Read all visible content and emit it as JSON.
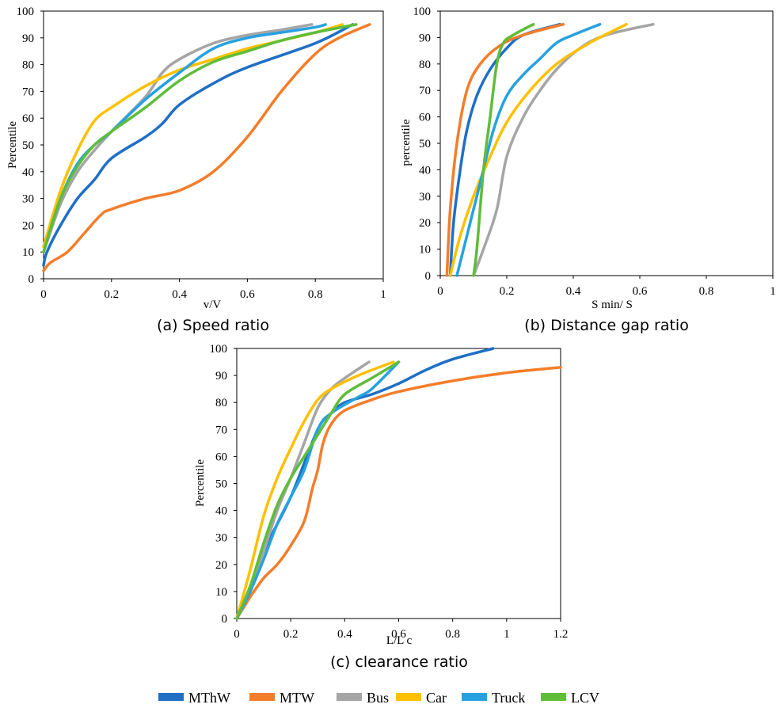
{
  "colors": {
    "MThW": "#1f6fc5",
    "MTW": "#f47d2a",
    "Bus": "#a5a5a5",
    "Car": "#ffc000",
    "Truck": "#27a1e0",
    "LCV": "#5fbd3a"
  },
  "legend": {
    "placement": "bottom",
    "items": [
      "MThW",
      "MTW",
      "Bus",
      "Car",
      "Truck",
      "LCV"
    ]
  },
  "chart_data": [
    {
      "type": "line",
      "caption": "(a) Speed ratio",
      "xlabel": "v/V",
      "ylabel": "Percentile",
      "xlim": [
        0,
        1
      ],
      "ylim": [
        0,
        100
      ],
      "xticks": [
        "0",
        "0.2",
        "0.4",
        "0.6",
        "0.8",
        "1"
      ],
      "yticks": [
        "0",
        "10",
        "20",
        "30",
        "40",
        "50",
        "60",
        "70",
        "80",
        "90",
        "100"
      ],
      "grid": false,
      "series": [
        {
          "name": "MThW",
          "points": [
            [
              0,
              5
            ],
            [
              0.01,
              10
            ],
            [
              0.05,
              20
            ],
            [
              0.1,
              30
            ],
            [
              0.15,
              37
            ],
            [
              0.2,
              45
            ],
            [
              0.3,
              53
            ],
            [
              0.35,
              58
            ],
            [
              0.4,
              65
            ],
            [
              0.5,
              73
            ],
            [
              0.6,
              79
            ],
            [
              0.8,
              88
            ],
            [
              0.91,
              95
            ]
          ]
        },
        {
          "name": "MTW",
          "points": [
            [
              0,
              3
            ],
            [
              0.02,
              6
            ],
            [
              0.07,
              10
            ],
            [
              0.12,
              17
            ],
            [
              0.17,
              24
            ],
            [
              0.2,
              26
            ],
            [
              0.3,
              30
            ],
            [
              0.4,
              33
            ],
            [
              0.5,
              40
            ],
            [
              0.6,
              53
            ],
            [
              0.7,
              70
            ],
            [
              0.8,
              84
            ],
            [
              0.87,
              90
            ],
            [
              0.96,
              95
            ]
          ]
        },
        {
          "name": "Bus",
          "points": [
            [
              0,
              10
            ],
            [
              0.05,
              28
            ],
            [
              0.1,
              40
            ],
            [
              0.15,
              48
            ],
            [
              0.2,
              55
            ],
            [
              0.3,
              68
            ],
            [
              0.35,
              77
            ],
            [
              0.4,
              82
            ],
            [
              0.5,
              88
            ],
            [
              0.6,
              91
            ],
            [
              0.7,
              93
            ],
            [
              0.79,
              95
            ]
          ]
        },
        {
          "name": "Car",
          "points": [
            [
              0,
              12
            ],
            [
              0.05,
              33
            ],
            [
              0.1,
              48
            ],
            [
              0.15,
              59
            ],
            [
              0.2,
              64
            ],
            [
              0.3,
              72
            ],
            [
              0.4,
              78
            ],
            [
              0.5,
              82
            ],
            [
              0.6,
              86
            ],
            [
              0.7,
              89
            ],
            [
              0.8,
              92
            ],
            [
              0.88,
              95
            ]
          ]
        },
        {
          "name": "Truck",
          "points": [
            [
              0,
              10
            ],
            [
              0.05,
              30
            ],
            [
              0.1,
              43
            ],
            [
              0.15,
              50
            ],
            [
              0.2,
              55
            ],
            [
              0.3,
              67
            ],
            [
              0.4,
              77
            ],
            [
              0.5,
              86
            ],
            [
              0.6,
              90
            ],
            [
              0.7,
              92
            ],
            [
              0.8,
              94
            ],
            [
              0.83,
              95
            ]
          ]
        },
        {
          "name": "LCV",
          "points": [
            [
              0,
              10
            ],
            [
              0.05,
              30
            ],
            [
              0.1,
              42
            ],
            [
              0.15,
              50
            ],
            [
              0.2,
              55
            ],
            [
              0.3,
              64
            ],
            [
              0.4,
              74
            ],
            [
              0.5,
              81
            ],
            [
              0.6,
              85
            ],
            [
              0.7,
              89
            ],
            [
              0.8,
              92
            ],
            [
              0.92,
              95
            ]
          ]
        }
      ]
    },
    {
      "type": "line",
      "caption": "(b) Distance gap ratio",
      "xlabel": "S min/ S",
      "ylabel": "percentile",
      "xlim": [
        0,
        1
      ],
      "ylim": [
        0,
        100
      ],
      "xticks": [
        "0",
        "0.2",
        "0.4",
        "0.6",
        "0.8",
        "1"
      ],
      "yticks": [
        "0",
        "10",
        "20",
        "30",
        "40",
        "50",
        "60",
        "70",
        "80",
        "90",
        "100"
      ],
      "grid": false,
      "series": [
        {
          "name": "MThW",
          "points": [
            [
              0.03,
              0
            ],
            [
              0.04,
              20
            ],
            [
              0.06,
              40
            ],
            [
              0.08,
              55
            ],
            [
              0.11,
              68
            ],
            [
              0.15,
              78
            ],
            [
              0.2,
              86
            ],
            [
              0.25,
              91
            ],
            [
              0.36,
              95
            ]
          ]
        },
        {
          "name": "MTW",
          "points": [
            [
              0.02,
              0
            ],
            [
              0.03,
              25
            ],
            [
              0.05,
              50
            ],
            [
              0.08,
              70
            ],
            [
              0.12,
              80
            ],
            [
              0.18,
              87
            ],
            [
              0.25,
              91
            ],
            [
              0.37,
              95
            ]
          ]
        },
        {
          "name": "Bus",
          "points": [
            [
              0.1,
              0
            ],
            [
              0.13,
              10
            ],
            [
              0.17,
              25
            ],
            [
              0.2,
              45
            ],
            [
              0.25,
              60
            ],
            [
              0.3,
              70
            ],
            [
              0.35,
              78
            ],
            [
              0.42,
              86
            ],
            [
              0.5,
              91
            ],
            [
              0.64,
              95
            ]
          ]
        },
        {
          "name": "Car",
          "points": [
            [
              0.03,
              0
            ],
            [
              0.06,
              15
            ],
            [
              0.1,
              30
            ],
            [
              0.15,
              45
            ],
            [
              0.2,
              58
            ],
            [
              0.27,
              70
            ],
            [
              0.35,
              80
            ],
            [
              0.45,
              88
            ],
            [
              0.56,
              95
            ]
          ]
        },
        {
          "name": "Truck",
          "points": [
            [
              0.05,
              0
            ],
            [
              0.08,
              15
            ],
            [
              0.12,
              35
            ],
            [
              0.16,
              55
            ],
            [
              0.2,
              68
            ],
            [
              0.25,
              76
            ],
            [
              0.3,
              82
            ],
            [
              0.35,
              88
            ],
            [
              0.4,
              91
            ],
            [
              0.48,
              95
            ]
          ]
        },
        {
          "name": "LCV",
          "points": [
            [
              0.1,
              0
            ],
            [
              0.11,
              10
            ],
            [
              0.13,
              40
            ],
            [
              0.15,
              60
            ],
            [
              0.17,
              80
            ],
            [
              0.19,
              88
            ],
            [
              0.22,
              91
            ],
            [
              0.28,
              95
            ]
          ]
        }
      ]
    },
    {
      "type": "line",
      "caption": "(c) clearance ratio",
      "xlabel": "L/L c",
      "ylabel": "Percentile",
      "xlim": [
        0,
        1.2
      ],
      "ylim": [
        0,
        100
      ],
      "xticks": [
        "0",
        "0.2",
        "0.4",
        "0.6",
        "0.8",
        "1",
        "1.2"
      ],
      "yticks": [
        "0",
        "10",
        "20",
        "30",
        "40",
        "50",
        "60",
        "70",
        "80",
        "90",
        "100"
      ],
      "grid": false,
      "series": [
        {
          "name": "MThW",
          "points": [
            [
              0,
              0
            ],
            [
              0.05,
              10
            ],
            [
              0.1,
              25
            ],
            [
              0.2,
              45
            ],
            [
              0.3,
              70
            ],
            [
              0.35,
              76
            ],
            [
              0.4,
              80
            ],
            [
              0.5,
              83
            ],
            [
              0.6,
              87
            ],
            [
              0.7,
              92
            ],
            [
              0.8,
              96
            ],
            [
              0.95,
              100
            ]
          ]
        },
        {
          "name": "MTW",
          "points": [
            [
              0,
              0
            ],
            [
              0.05,
              8
            ],
            [
              0.1,
              15
            ],
            [
              0.15,
              20
            ],
            [
              0.2,
              27
            ],
            [
              0.25,
              36
            ],
            [
              0.28,
              48
            ],
            [
              0.3,
              55
            ],
            [
              0.32,
              65
            ],
            [
              0.35,
              72
            ],
            [
              0.4,
              77
            ],
            [
              0.5,
              81
            ],
            [
              0.6,
              84
            ],
            [
              0.8,
              88
            ],
            [
              1,
              91
            ],
            [
              1.2,
              93
            ]
          ]
        },
        {
          "name": "Bus",
          "points": [
            [
              0,
              0
            ],
            [
              0.05,
              12
            ],
            [
              0.1,
              25
            ],
            [
              0.15,
              40
            ],
            [
              0.2,
              52
            ],
            [
              0.25,
              65
            ],
            [
              0.3,
              78
            ],
            [
              0.35,
              85
            ],
            [
              0.4,
              89
            ],
            [
              0.49,
              95
            ]
          ]
        },
        {
          "name": "Car",
          "points": [
            [
              0,
              0
            ],
            [
              0.05,
              18
            ],
            [
              0.1,
              38
            ],
            [
              0.15,
              52
            ],
            [
              0.2,
              63
            ],
            [
              0.25,
              73
            ],
            [
              0.3,
              81
            ],
            [
              0.35,
              85
            ],
            [
              0.45,
              90
            ],
            [
              0.58,
              95
            ]
          ]
        },
        {
          "name": "Truck",
          "points": [
            [
              0,
              0
            ],
            [
              0.05,
              10
            ],
            [
              0.1,
              22
            ],
            [
              0.15,
              35
            ],
            [
              0.2,
              45
            ],
            [
              0.25,
              55
            ],
            [
              0.3,
              70
            ],
            [
              0.35,
              76
            ],
            [
              0.45,
              82
            ],
            [
              0.5,
              85
            ],
            [
              0.6,
              95
            ]
          ]
        },
        {
          "name": "LCV",
          "points": [
            [
              0,
              0
            ],
            [
              0.05,
              12
            ],
            [
              0.1,
              28
            ],
            [
              0.15,
              42
            ],
            [
              0.2,
              52
            ],
            [
              0.25,
              60
            ],
            [
              0.3,
              68
            ],
            [
              0.35,
              76
            ],
            [
              0.4,
              83
            ],
            [
              0.5,
              89
            ],
            [
              0.6,
              95
            ]
          ]
        }
      ]
    }
  ]
}
